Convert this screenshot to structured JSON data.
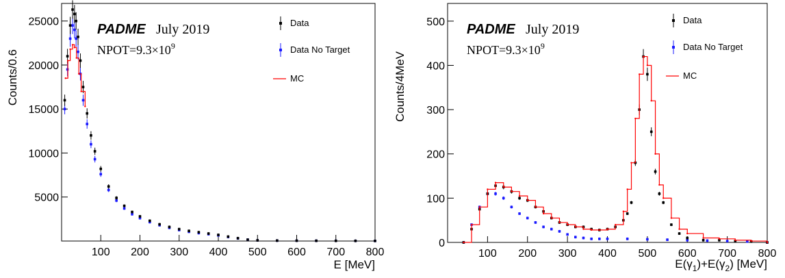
{
  "chart_data": [
    {
      "type": "scatter",
      "title": "PADME",
      "subtitle": "July 2019",
      "npot_base": "NPOT=9.3×10",
      "npot_exp": "9",
      "xlabel": "E [MeV]",
      "ylabel": "Counts/0.6",
      "xlim": [
        0,
        800
      ],
      "ylim": [
        0,
        27000
      ],
      "xticks": [
        "100",
        "200",
        "300",
        "400",
        "500",
        "600",
        "700",
        "800"
      ],
      "yticks": [
        "5000",
        "10000",
        "15000",
        "20000",
        "25000"
      ],
      "legend_placement": "top-right",
      "series": [
        {
          "name": "Data",
          "color": "#000000",
          "x": [
            8,
            15,
            22,
            28,
            33,
            37,
            42,
            48,
            55,
            65,
            75,
            85,
            100,
            120,
            140,
            160,
            180,
            200,
            225,
            250,
            275,
            300,
            325,
            350,
            375,
            400,
            425,
            450,
            475,
            500,
            550,
            600,
            650,
            700,
            750,
            800
          ],
          "y": [
            16000,
            21000,
            24500,
            26300,
            25800,
            25000,
            23200,
            20500,
            17500,
            14500,
            12000,
            10200,
            8200,
            6200,
            4900,
            4000,
            3300,
            2800,
            2300,
            1900,
            1600,
            1350,
            1150,
            1000,
            850,
            700,
            500,
            320,
            150,
            80,
            50,
            40,
            30,
            25,
            20,
            15
          ]
        },
        {
          "name": "Data No Target",
          "color": "#1a1aff",
          "x": [
            8,
            15,
            22,
            28,
            33,
            37,
            42,
            48,
            55,
            65,
            75,
            85,
            100,
            120,
            140,
            160,
            180,
            200,
            225,
            250,
            275,
            300,
            325,
            350,
            375,
            400,
            425,
            450,
            475,
            500,
            550,
            600,
            650,
            700,
            750,
            800
          ],
          "y": [
            15000,
            19500,
            23000,
            24500,
            24000,
            23000,
            21500,
            19000,
            16000,
            13300,
            11000,
            9300,
            7600,
            5800,
            4600,
            3700,
            3050,
            2600,
            2150,
            1800,
            1500,
            1250,
            1050,
            900,
            780,
            640,
            460,
            300,
            150,
            80,
            50,
            40,
            30,
            25,
            20,
            15
          ]
        },
        {
          "name": "MC",
          "color": "#ff0000",
          "x": [
            10,
            16,
            22,
            28,
            33,
            38,
            44,
            50,
            60
          ],
          "y": [
            18500,
            20500,
            21800,
            22300,
            22000,
            20800,
            19000,
            17000,
            15300
          ]
        }
      ]
    },
    {
      "type": "scatter",
      "title": "PADME",
      "subtitle": "July 2019",
      "npot_base": "NPOT=9.3×10",
      "npot_exp": "9",
      "xlabel": "E(γ1)+E(γ2) [MeV]",
      "ylabel": "Counts/4MeV",
      "xlim": [
        0,
        800
      ],
      "ylim": [
        0,
        540
      ],
      "xticks": [
        "100",
        "200",
        "300",
        "400",
        "500",
        "600",
        "700",
        "800"
      ],
      "yticks": [
        "0",
        "100",
        "200",
        "300",
        "400",
        "500"
      ],
      "legend_placement": "top-right",
      "series": [
        {
          "name": "Data",
          "color": "#000000",
          "x": [
            40,
            60,
            80,
            100,
            120,
            140,
            160,
            180,
            200,
            220,
            240,
            260,
            280,
            300,
            320,
            340,
            360,
            380,
            400,
            420,
            440,
            450,
            460,
            470,
            480,
            490,
            500,
            510,
            520,
            530,
            540,
            560,
            580,
            600,
            640,
            680,
            720,
            760,
            800
          ],
          "y": [
            0,
            30,
            75,
            110,
            128,
            125,
            115,
            100,
            95,
            80,
            70,
            55,
            45,
            40,
            35,
            35,
            30,
            28,
            30,
            35,
            50,
            65,
            90,
            180,
            300,
            420,
            380,
            250,
            160,
            110,
            90,
            40,
            20,
            10,
            5,
            5,
            3,
            2,
            0
          ]
        },
        {
          "name": "Data No Target",
          "color": "#1a1aff",
          "x": [
            40,
            60,
            80,
            100,
            120,
            140,
            160,
            180,
            200,
            220,
            240,
            260,
            280,
            300,
            320,
            340,
            360,
            380,
            400,
            450,
            500,
            550,
            600,
            650,
            700,
            750,
            800
          ],
          "y": [
            0,
            40,
            80,
            110,
            110,
            100,
            80,
            65,
            55,
            45,
            35,
            30,
            25,
            18,
            12,
            10,
            8,
            8,
            8,
            8,
            7,
            6,
            5,
            4,
            3,
            2,
            0
          ]
        },
        {
          "name": "MC",
          "color": "#ff0000",
          "x": [
            40,
            60,
            80,
            100,
            120,
            140,
            160,
            180,
            200,
            220,
            240,
            260,
            280,
            300,
            320,
            340,
            360,
            380,
            400,
            420,
            440,
            450,
            460,
            470,
            480,
            490,
            500,
            510,
            520,
            530,
            540,
            560,
            580,
            600,
            640,
            680,
            720,
            760,
            800
          ],
          "y": [
            0,
            40,
            80,
            120,
            135,
            125,
            115,
            105,
            95,
            80,
            65,
            55,
            45,
            40,
            35,
            30,
            28,
            28,
            30,
            40,
            70,
            120,
            180,
            280,
            380,
            420,
            400,
            320,
            200,
            130,
            100,
            55,
            30,
            20,
            10,
            8,
            5,
            3,
            0
          ]
        }
      ]
    }
  ]
}
